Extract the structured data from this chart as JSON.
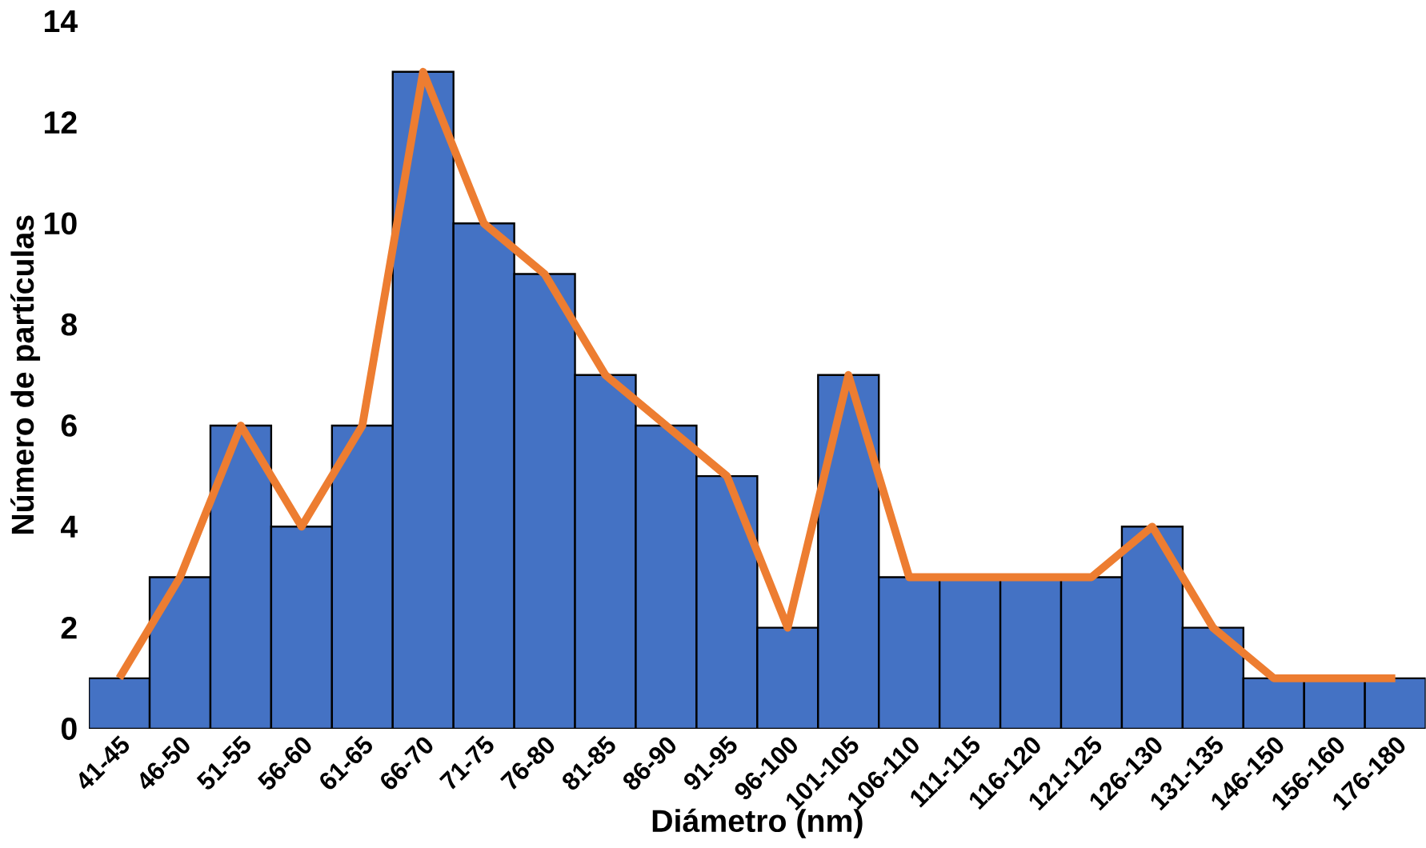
{
  "chart_data": {
    "type": "bar",
    "xlabel": "Diámetro (nm)",
    "ylabel": "Número de partículas",
    "categories": [
      "41-45",
      "46-50",
      "51-55",
      "56-60",
      "61-65",
      "66-70",
      "71-75",
      "76-80",
      "81-85",
      "86-90",
      "91-95",
      "96-100",
      "101-105",
      "106-110",
      "111-115",
      "116-120",
      "121-125",
      "126-130",
      "131-135",
      "146-150",
      "156-160",
      "176-180"
    ],
    "series": [
      {
        "color": "#4472c4",
        "values": [
          1,
          3,
          6,
          4,
          6,
          13,
          10,
          9,
          7,
          6,
          5,
          2,
          7,
          3,
          3,
          3,
          3,
          4,
          2,
          1,
          1,
          1
        ]
      },
      {
        "type": "line",
        "color": "#ed7d31",
        "values": [
          1,
          3,
          6,
          4,
          6,
          13,
          10,
          9,
          7,
          6,
          5,
          2,
          7,
          3,
          3,
          3,
          3,
          4,
          2,
          1,
          1,
          1
        ]
      }
    ],
    "ylim": [
      0,
      14
    ],
    "yticks": [
      0,
      2,
      4,
      6,
      8,
      10,
      12,
      14
    ]
  }
}
